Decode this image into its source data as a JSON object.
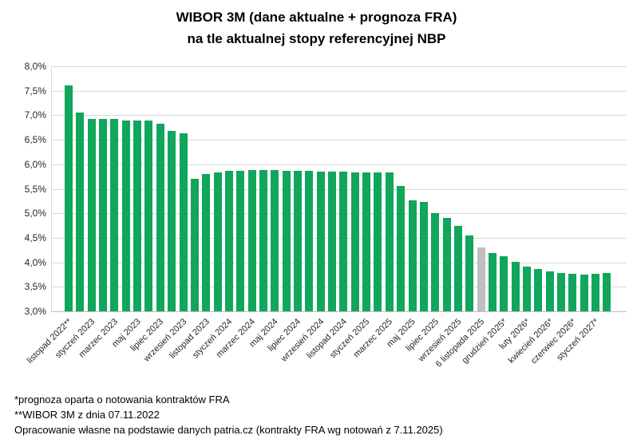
{
  "title": {
    "line1": "WIBOR 3M (dane aktualne + prognoza FRA)",
    "line2": "na tle aktualnej stopy referencyjnej NBP"
  },
  "footnotes": [
    "*prognoza oparta o notowania kontraktów FRA",
    "**WIBOR 3M z dnia 07.11.2022",
    "Opracowanie własne na podstawie danych patria.cz (kontrakty FRA wg notowań z 7.11.2025)"
  ],
  "colors": {
    "bar_green": "#10a65c",
    "bar_gray": "#bfbfbf",
    "gridline": "#d9d9d9",
    "baseline": "#bfbfbf",
    "axis_text": "#262626"
  },
  "chart_data": {
    "type": "bar",
    "title": "WIBOR 3M (dane aktualne + prognoza FRA)",
    "subtitle": "na tle aktualnej stopy referencyjnej NBP",
    "xlabel": "",
    "ylabel": "",
    "ylim": [
      3.0,
      8.0
    ],
    "ytick_step": 0.5,
    "grid": true,
    "legend": "none",
    "yticks": [
      {
        "value": 8.0,
        "label": "8,0%"
      },
      {
        "value": 7.5,
        "label": "7,5%"
      },
      {
        "value": 7.0,
        "label": "7,0%"
      },
      {
        "value": 6.5,
        "label": "6,5%"
      },
      {
        "value": 6.0,
        "label": "6,0%"
      },
      {
        "value": 5.5,
        "label": "5,5%"
      },
      {
        "value": 5.0,
        "label": "5,0%"
      },
      {
        "value": 4.5,
        "label": "4,5%"
      },
      {
        "value": 4.0,
        "label": "4,0%"
      },
      {
        "value": 3.5,
        "label": "3,5%"
      },
      {
        "value": 3.0,
        "label": "3,0%"
      }
    ],
    "bars": [
      {
        "label": "listopad 2022**",
        "value": 7.61,
        "color": "green"
      },
      {
        "label": "",
        "value": 7.06,
        "color": "green"
      },
      {
        "label": "styczeń 2023",
        "value": 6.93,
        "color": "green"
      },
      {
        "label": "",
        "value": 6.93,
        "color": "green"
      },
      {
        "label": "marzec 2023",
        "value": 6.93,
        "color": "green"
      },
      {
        "label": "",
        "value": 6.9,
        "color": "green"
      },
      {
        "label": "maj 2023",
        "value": 6.9,
        "color": "green"
      },
      {
        "label": "",
        "value": 6.9,
        "color": "green"
      },
      {
        "label": "lipiec 2023",
        "value": 6.83,
        "color": "green"
      },
      {
        "label": "",
        "value": 6.68,
        "color": "green"
      },
      {
        "label": "wrzesień 2023",
        "value": 6.63,
        "color": "green"
      },
      {
        "label": "",
        "value": 5.7,
        "color": "green"
      },
      {
        "label": "listopad 2023",
        "value": 5.8,
        "color": "green"
      },
      {
        "label": "",
        "value": 5.83,
        "color": "green"
      },
      {
        "label": "styczeń 2024",
        "value": 5.87,
        "color": "green"
      },
      {
        "label": "",
        "value": 5.87,
        "color": "green"
      },
      {
        "label": "marzec 2024",
        "value": 5.88,
        "color": "green"
      },
      {
        "label": "",
        "value": 5.88,
        "color": "green"
      },
      {
        "label": "maj 2024",
        "value": 5.88,
        "color": "green"
      },
      {
        "label": "",
        "value": 5.87,
        "color": "green"
      },
      {
        "label": "lipiec 2024",
        "value": 5.86,
        "color": "green"
      },
      {
        "label": "",
        "value": 5.86,
        "color": "green"
      },
      {
        "label": "wrzesień 2024",
        "value": 5.85,
        "color": "green"
      },
      {
        "label": "",
        "value": 5.85,
        "color": "green"
      },
      {
        "label": "listopad 2024",
        "value": 5.85,
        "color": "green"
      },
      {
        "label": "",
        "value": 5.84,
        "color": "green"
      },
      {
        "label": "styczeń 2025",
        "value": 5.84,
        "color": "green"
      },
      {
        "label": "",
        "value": 5.84,
        "color": "green"
      },
      {
        "label": "marzec 2025",
        "value": 5.84,
        "color": "green"
      },
      {
        "label": "",
        "value": 5.55,
        "color": "green"
      },
      {
        "label": "maj 2025",
        "value": 5.27,
        "color": "green"
      },
      {
        "label": "",
        "value": 5.23,
        "color": "green"
      },
      {
        "label": "lipiec 2025",
        "value": 5.01,
        "color": "green"
      },
      {
        "label": "",
        "value": 4.9,
        "color": "green"
      },
      {
        "label": "wrzesień 2025",
        "value": 4.74,
        "color": "green"
      },
      {
        "label": "",
        "value": 4.55,
        "color": "green"
      },
      {
        "label": "6 listopada 2025",
        "value": 4.3,
        "color": "gray"
      },
      {
        "label": "",
        "value": 4.19,
        "color": "green"
      },
      {
        "label": "grudzień 2025*",
        "value": 4.12,
        "color": "green"
      },
      {
        "label": "",
        "value": 4.01,
        "color": "green"
      },
      {
        "label": "luty 2026*",
        "value": 3.92,
        "color": "green"
      },
      {
        "label": "",
        "value": 3.87,
        "color": "green"
      },
      {
        "label": "kwiecień 2026*",
        "value": 3.82,
        "color": "green"
      },
      {
        "label": "",
        "value": 3.78,
        "color": "green"
      },
      {
        "label": "czerwiec 2026*",
        "value": 3.76,
        "color": "green"
      },
      {
        "label": "",
        "value": 3.75,
        "color": "green"
      },
      {
        "label": "styczeń 2027*",
        "value": 3.77,
        "color": "green"
      },
      {
        "label": "",
        "value": 3.78,
        "color": "green"
      }
    ]
  }
}
